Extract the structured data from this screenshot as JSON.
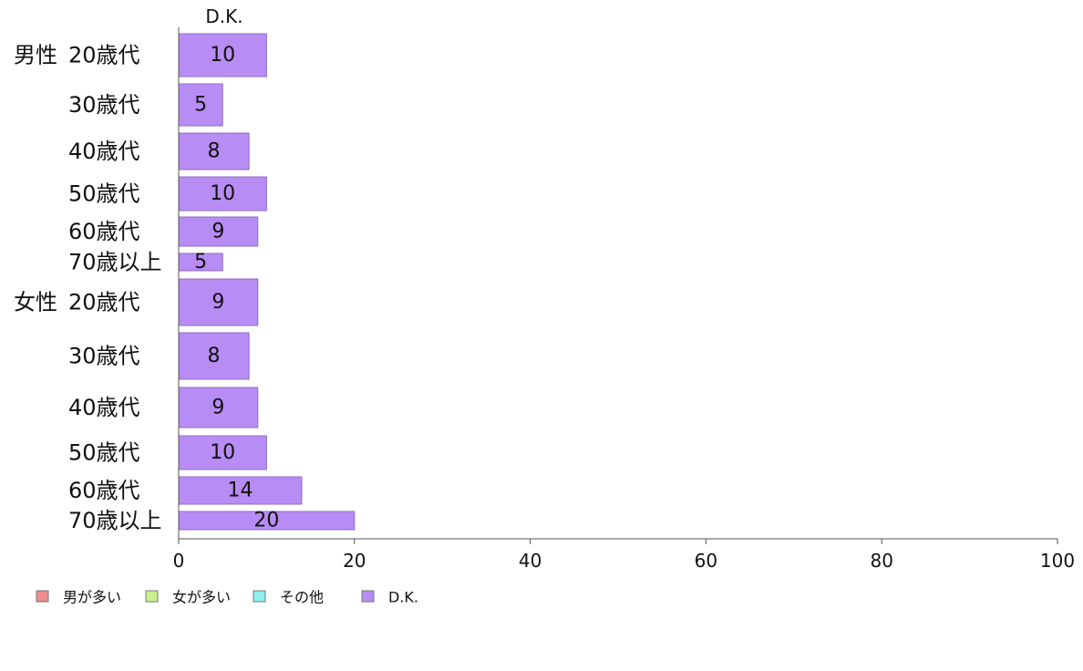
{
  "chart_data": {
    "type": "bar",
    "orientation": "horizontal",
    "series_header": "D.K.",
    "groups": [
      "男性",
      "女性"
    ],
    "categories": [
      "20歳代",
      "30歳代",
      "40歳代",
      "50歳代",
      "60歳代",
      "70歳以上",
      "20歳代",
      "30歳代",
      "40歳代",
      "50歳代",
      "60歳代",
      "70歳以上"
    ],
    "category_group": [
      "男性",
      "",
      "",
      "",
      "",
      "",
      "女性",
      "",
      "",
      "",
      "",
      ""
    ],
    "series": [
      {
        "name": "D.K.",
        "values": [
          10,
          5,
          8,
          10,
          9,
          5,
          9,
          8,
          9,
          10,
          14,
          20
        ]
      }
    ],
    "xlim": [
      0,
      100
    ],
    "xticks": [
      0,
      20,
      40,
      60,
      80,
      100
    ],
    "legend": [
      {
        "label": "男が多い",
        "color": "#f08c8c"
      },
      {
        "label": "女が多い",
        "color": "#c8f08c"
      },
      {
        "label": "その他",
        "color": "#8cf0f0"
      },
      {
        "label": "D.K.",
        "color": "#b88cf5"
      }
    ],
    "legend_position": "bottom-left",
    "bar_color": "#b88cf5",
    "bar_stroke": "#8f6bc4"
  }
}
